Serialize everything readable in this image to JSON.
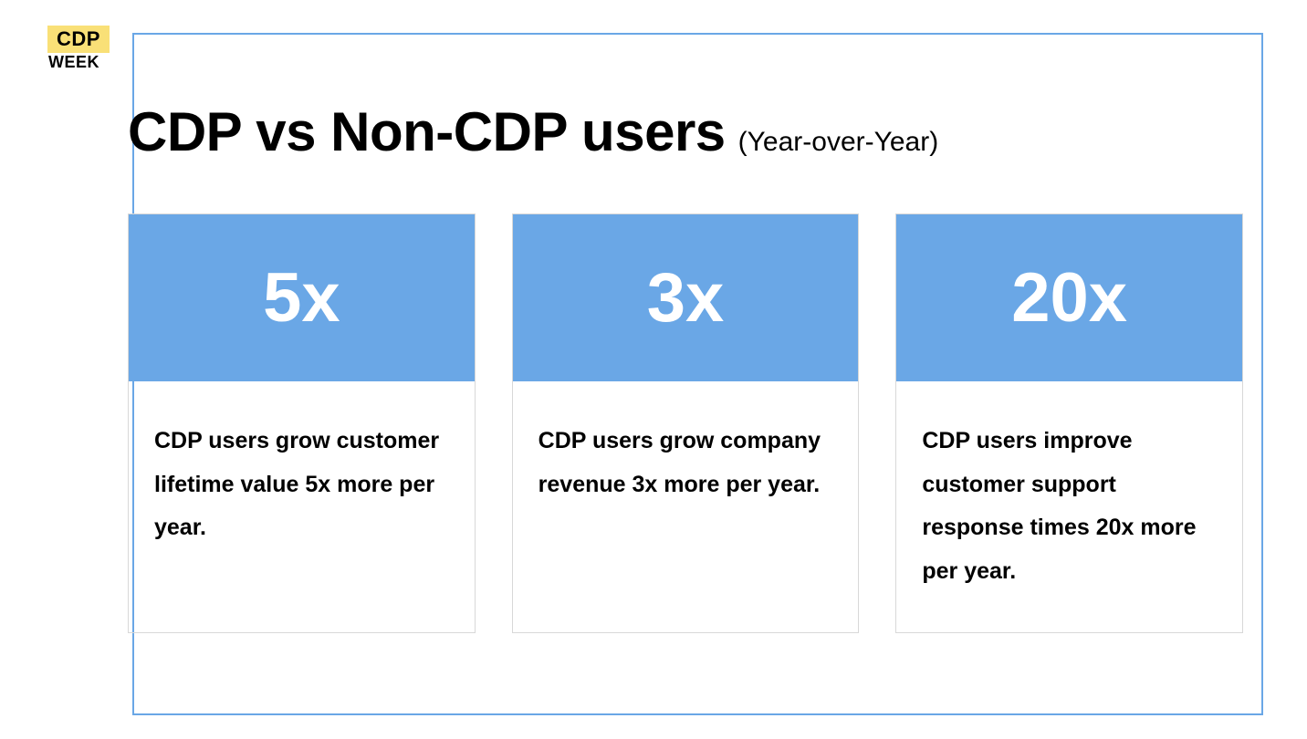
{
  "logo": {
    "top": "CDP",
    "bottom": "WEEK",
    "badge_bg": "#f9e077",
    "text_color": "#000000"
  },
  "border_color": "#6aa7e6",
  "background_color": "#ffffff",
  "title": {
    "main": "CDP vs Non-CDP users",
    "sub": "(Year-over-Year)",
    "main_fontsize": 60,
    "sub_fontsize": 30,
    "color": "#000000"
  },
  "cards": [
    {
      "stat": "5x",
      "description": "CDP users grow customer lifetime value 5x more per year."
    },
    {
      "stat": "3x",
      "description": "CDP users grow company revenue 3x more per year."
    },
    {
      "stat": "20x",
      "description": "CDP users improve customer support response times 20x more per year."
    }
  ],
  "card_style": {
    "header_bg": "#6aa7e6",
    "header_text_color": "#ffffff",
    "header_fontsize": 76,
    "body_bg": "#ffffff",
    "body_text_color": "#000000",
    "body_fontsize": 25,
    "border_color": "#d8d8d8",
    "gap": 40
  }
}
